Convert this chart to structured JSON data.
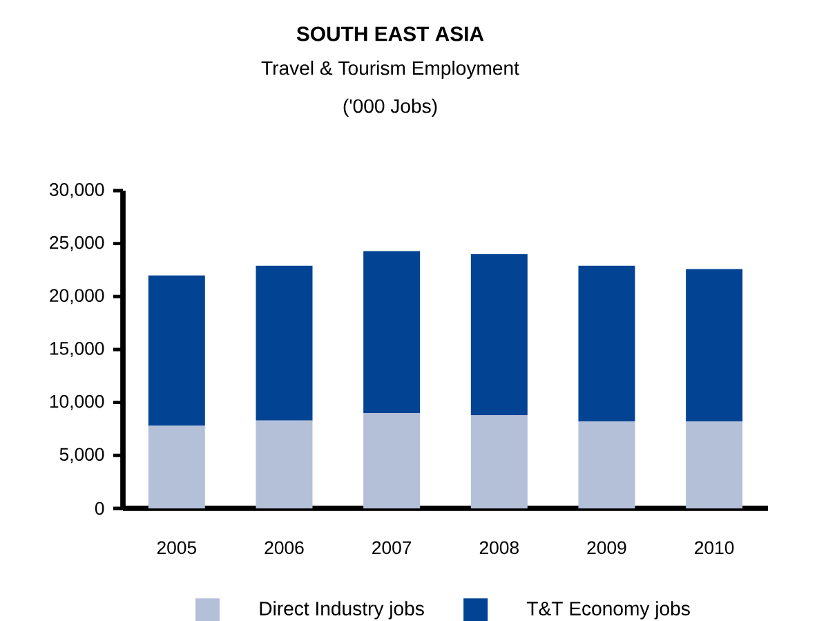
{
  "chart_data": {
    "type": "bar",
    "title": "SOUTH EAST ASIA",
    "subtitle": "Travel & Tourism Employment",
    "ylabel": "('000 Jobs)",
    "categories": [
      "2005",
      "2006",
      "2007",
      "2008",
      "2009",
      "2010"
    ],
    "stacked": true,
    "series": [
      {
        "name": "Direct Industry jobs",
        "color": "#b4c0d8",
        "values": [
          7800,
          8300,
          9000,
          8800,
          8200,
          8200
        ]
      },
      {
        "name": "T&T Economy jobs",
        "color": "#034394",
        "values": [
          14200,
          14600,
          15300,
          15200,
          14700,
          14400
        ]
      }
    ],
    "ylim": [
      0,
      30000
    ],
    "yticks": [
      0,
      {
        "value": 5000,
        "label": "5,000"
      },
      {
        "value": 10000,
        "label": "10,000"
      },
      {
        "value": 15000,
        "label": "15,000"
      },
      {
        "value": 20000,
        "label": "20,000"
      },
      {
        "value": 25000,
        "label": "25,000"
      },
      {
        "value": 30000,
        "label": "30,000"
      }
    ],
    "grid": false,
    "legend": "bottom"
  }
}
